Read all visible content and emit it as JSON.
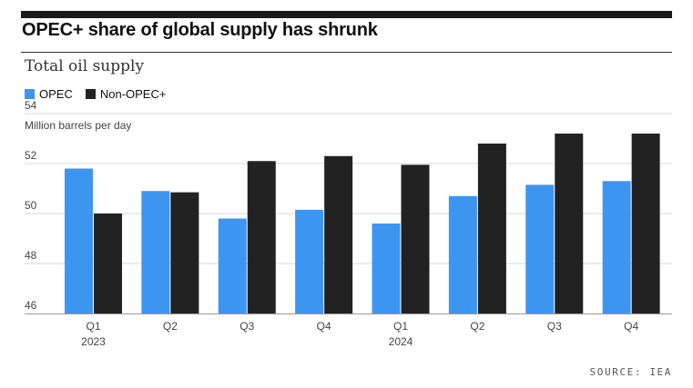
{
  "header": {
    "title": "OPEC+ share of global supply has shrunk"
  },
  "source_note": "SOURCE: IEA",
  "colors": {
    "opec": "#3d95f2",
    "non_opec": "#222222",
    "grid": "#d9d9d9",
    "axis": "#999999"
  },
  "chart_data": {
    "type": "bar",
    "title": "Total oil supply",
    "ylabel": "Million barrels per day",
    "xlabel": "",
    "ylim": [
      46,
      54
    ],
    "yticks": [
      46,
      48,
      50,
      52,
      54
    ],
    "categories": [
      "Q1",
      "Q2",
      "Q3",
      "Q4",
      "Q1",
      "Q2",
      "Q3",
      "Q4"
    ],
    "category_years": [
      "2023",
      "",
      "",
      "",
      "2024",
      "",
      "",
      ""
    ],
    "series": [
      {
        "name": "OPEC",
        "values": [
          51.8,
          50.9,
          49.8,
          50.15,
          49.6,
          50.7,
          51.15,
          51.3
        ]
      },
      {
        "name": "Non-OPEC+",
        "values": [
          50.0,
          50.85,
          52.1,
          52.3,
          51.95,
          52.8,
          53.2,
          53.2
        ]
      }
    ],
    "legend": "top-left",
    "grid": true
  }
}
